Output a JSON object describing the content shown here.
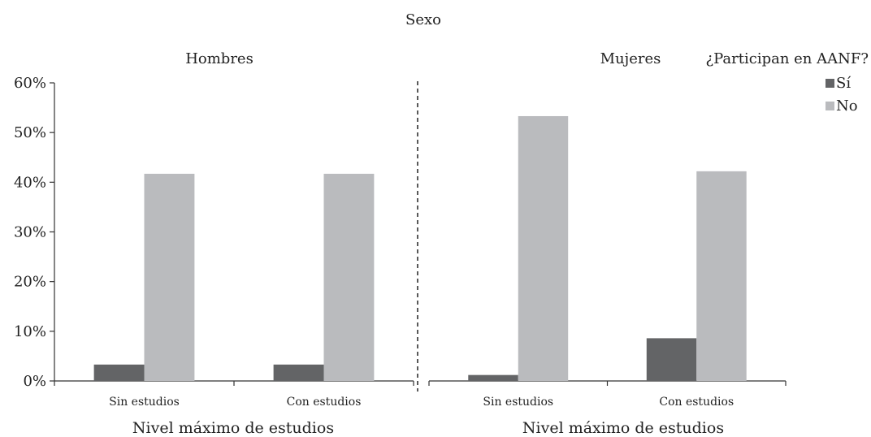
{
  "chart_data": {
    "type": "bar",
    "title": "Sexo",
    "legend": {
      "title": "¿Participan en AANF?",
      "placement": "top-right"
    },
    "series": [
      {
        "name": "Sí",
        "color": "#636466"
      },
      {
        "name": "No",
        "color": "#babbbe"
      }
    ],
    "ylim": [
      0,
      60
    ],
    "y_ticks": [
      "0%",
      "10%",
      "20%",
      "30%",
      "40%",
      "50%",
      "60%"
    ],
    "grid": false,
    "panels": [
      {
        "name": "Hombres",
        "xlabel": "Nivel máximo de estudios",
        "categories": [
          "Sin estudios",
          "Con estudios"
        ],
        "values": {
          "Sí": [
            3.3,
            3.3
          ],
          "No": [
            41.7,
            41.7
          ]
        }
      },
      {
        "name": "Mujeres",
        "xlabel": "Nivel máximo de estudios",
        "categories": [
          "Sin estudios",
          "Con estudios"
        ],
        "values": {
          "Sí": [
            1.2,
            8.6
          ],
          "No": [
            53.3,
            42.2
          ]
        }
      }
    ]
  }
}
